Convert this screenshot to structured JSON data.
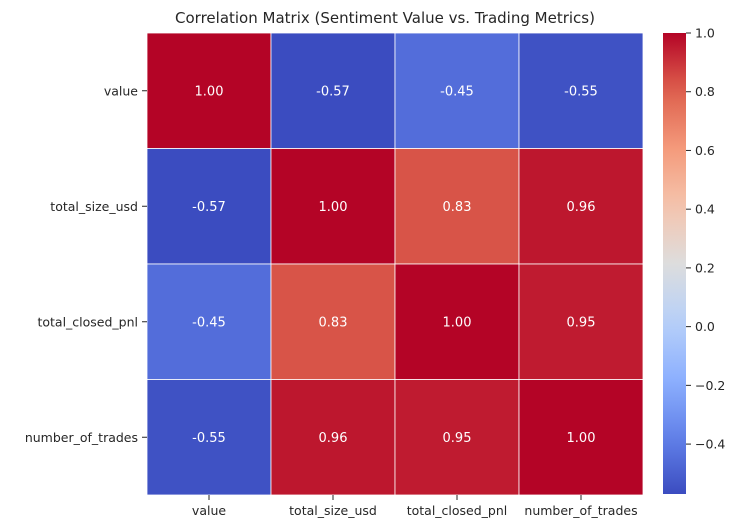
{
  "chart_data": {
    "type": "heatmap",
    "title": "Correlation Matrix (Sentiment Value vs. Trading Metrics)",
    "x_labels": [
      "value",
      "total_size_usd",
      "total_closed_pnl",
      "number_of_trades"
    ],
    "y_labels": [
      "value",
      "total_size_usd",
      "total_closed_pnl",
      "number_of_trades"
    ],
    "matrix": [
      [
        1.0,
        -0.57,
        -0.45,
        -0.55
      ],
      [
        -0.57,
        1.0,
        0.83,
        0.96
      ],
      [
        -0.45,
        0.83,
        1.0,
        0.95
      ],
      [
        -0.55,
        0.96,
        0.95,
        1.0
      ]
    ],
    "value_format_decimals": 2,
    "colormap": "coolwarm",
    "color_range": [
      -0.57,
      1.0
    ],
    "colorbar_ticks": [
      1.0,
      0.8,
      0.6,
      0.4,
      0.2,
      0.0,
      -0.2,
      -0.4
    ],
    "colorbar_tick_labels": [
      "1.0",
      "0.8",
      "0.6",
      "0.4",
      "0.2",
      "0.0",
      "−0.2",
      "−0.4"
    ],
    "cell_text_color": "#ffffff",
    "grid_line_color": "#ffffff"
  }
}
